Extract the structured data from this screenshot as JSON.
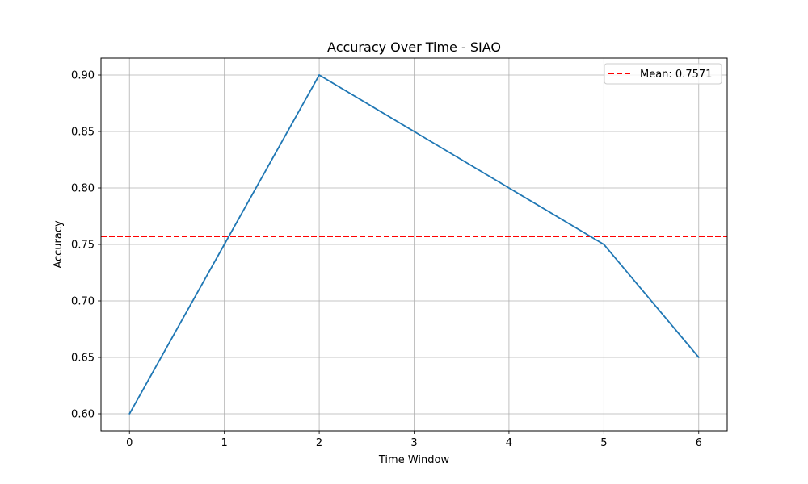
{
  "chart_data": {
    "type": "line",
    "title": "Accuracy Over Time - SIAO",
    "xlabel": "Time Window",
    "ylabel": "Accuracy",
    "x": [
      0,
      1,
      2,
      3,
      4,
      5,
      6
    ],
    "series": [
      {
        "values": [
          0.6,
          0.75,
          0.9,
          0.85,
          0.8,
          0.75,
          0.65
        ],
        "color": "#1f77b4"
      }
    ],
    "reference_lines": [
      {
        "name": "Mean: 0.7571",
        "y": 0.7571,
        "color": "#ff0000",
        "style": "dashed"
      }
    ],
    "xticks": [
      0,
      1,
      2,
      3,
      4,
      5,
      6
    ],
    "xtick_labels": [
      "0",
      "1",
      "2",
      "3",
      "4",
      "5",
      "6"
    ],
    "yticks": [
      0.6,
      0.65,
      0.7,
      0.75,
      0.8,
      0.85,
      0.9
    ],
    "ytick_labels": [
      "0.60",
      "0.65",
      "0.70",
      "0.75",
      "0.80",
      "0.85",
      "0.90"
    ],
    "xlim": [
      -0.3,
      6.3
    ],
    "ylim": [
      0.585,
      0.915
    ],
    "grid": true,
    "legend_position": "top-right"
  }
}
